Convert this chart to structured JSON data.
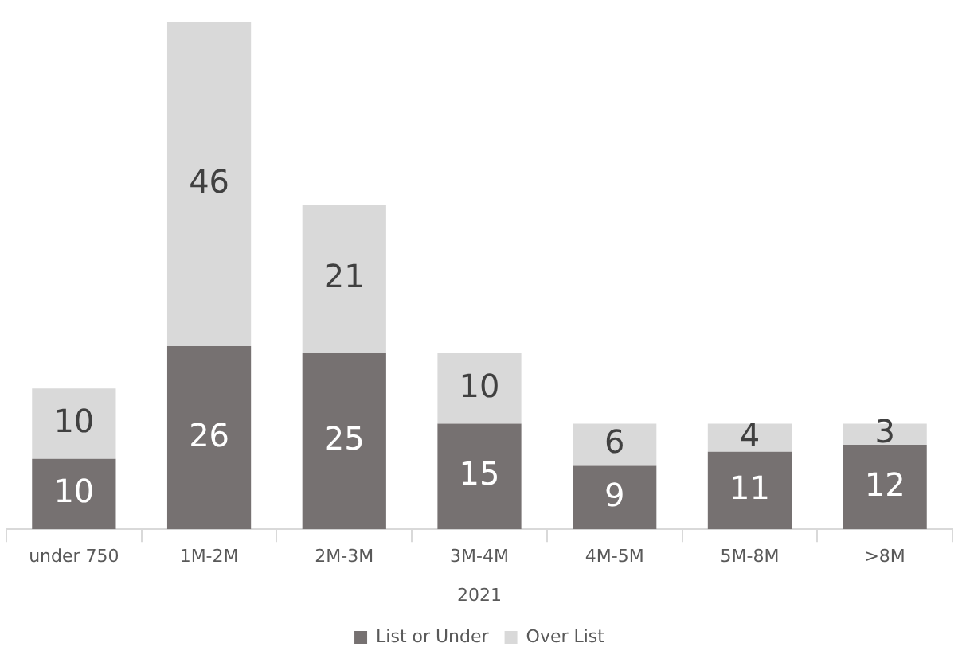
{
  "chart_data": {
    "type": "bar",
    "stacked": true,
    "xlabel": "2021",
    "categories": [
      "under 750",
      "1M-2M",
      "2M-3M",
      "3M-4M",
      "4M-5M",
      "5M-8M",
      ">8M"
    ],
    "series": [
      {
        "name": "List or Under",
        "color": "#767171",
        "values": [
          10,
          26,
          25,
          15,
          9,
          11,
          12
        ]
      },
      {
        "name": "Over List",
        "color": "#d9d9d9",
        "values": [
          10,
          46,
          21,
          10,
          6,
          4,
          3
        ]
      }
    ],
    "data_labels": true,
    "legend": "bottom",
    "grid": false
  }
}
